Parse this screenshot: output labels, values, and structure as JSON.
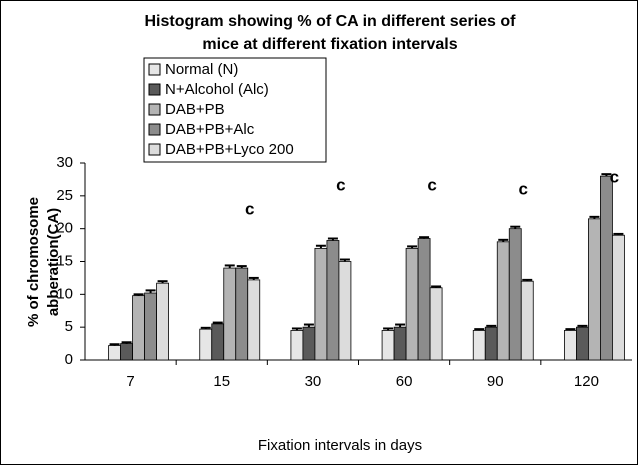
{
  "chart_data": {
    "type": "bar",
    "title": [
      "Histogram showing % of CA in different series of",
      "mice at different fixation intervals"
    ],
    "y_label": [
      "% of chromosome",
      "abberation(CA)"
    ],
    "x_label": "Fixation intervals in days",
    "categories": [
      "7",
      "15",
      "30",
      "60",
      "90",
      "120"
    ],
    "series": [
      {
        "name": "Normal (N)",
        "color": "#e6e6e6",
        "values": [
          2.2,
          4.7,
          4.5,
          4.5,
          4.5,
          4.5
        ],
        "errors": [
          0.2,
          0.2,
          0.3,
          0.3,
          0.2,
          0.2
        ]
      },
      {
        "name": "N+Alcohol (Alc)",
        "color": "#5a5a5a",
        "values": [
          2.5,
          5.5,
          5,
          5,
          5,
          5
        ],
        "errors": [
          0.2,
          0.2,
          0.4,
          0.4,
          0.2,
          0.2
        ]
      },
      {
        "name": "DAB+PB",
        "color": "#b4b4b4",
        "values": [
          9.8,
          14,
          17,
          17,
          18,
          21.5
        ],
        "errors": [
          0.2,
          0.4,
          0.4,
          0.3,
          0.3,
          0.3
        ]
      },
      {
        "name": "DAB+PB+Alc",
        "color": "#8c8c8c",
        "values": [
          10.2,
          14,
          18.2,
          18.5,
          20,
          28
        ],
        "errors": [
          0.4,
          0.3,
          0.3,
          0.2,
          0.3,
          0.3
        ]
      },
      {
        "name": "DAB+PB+Lyco 200",
        "color": "#dcdcdc",
        "values": [
          11.7,
          12.2,
          15,
          11,
          12,
          19
        ],
        "errors": [
          0.3,
          0.3,
          0.3,
          0.2,
          0.2,
          0.2
        ]
      }
    ],
    "annotations": [
      null,
      "c",
      "c",
      "c",
      "c",
      "c"
    ],
    "ylim": [
      0,
      30
    ],
    "yticks": [
      0,
      5,
      10,
      15,
      20,
      25,
      30
    ],
    "grid": false,
    "legend": "top-left"
  }
}
